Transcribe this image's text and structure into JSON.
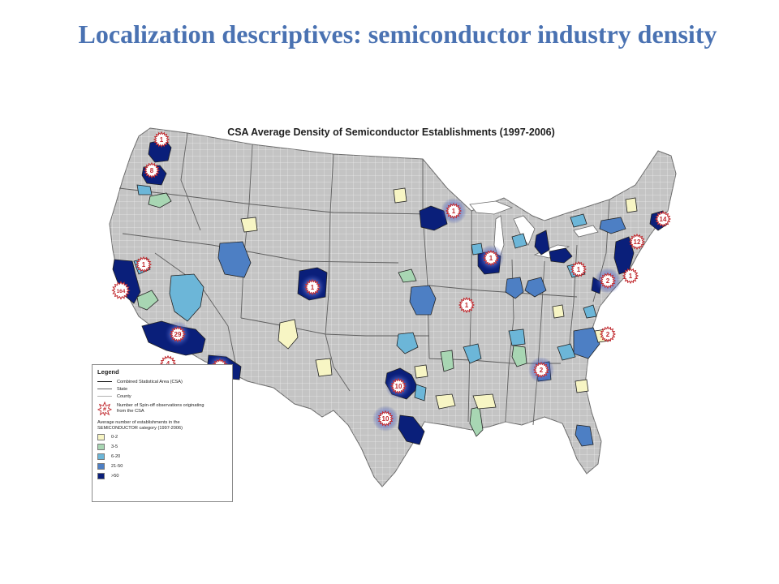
{
  "slide": {
    "title": "Localization descriptives:  semiconductor industry density"
  },
  "map": {
    "title": "CSA Average Density of Semiconductor Establishments (1997-2006)",
    "legend": {
      "title": "Legend",
      "lines": [
        {
          "label": "Combined Statistical Area (CSA)"
        },
        {
          "label": "State"
        },
        {
          "label": "County"
        }
      ],
      "spinoff_symbol": "#",
      "spinoff_label": "Number of Spin-off observations originating from the CSA",
      "category_heading": "Average number of establishments in the SEMICONDUCTOR category (1997-2006)",
      "categories": [
        {
          "label": "0-2",
          "color": "#f7f5c4"
        },
        {
          "label": "3-5",
          "color": "#a8d6b3"
        },
        {
          "label": "6-20",
          "color": "#6cb6d8"
        },
        {
          "label": "21-50",
          "color": "#4d7fc4"
        },
        {
          "label": ">50",
          "color": "#0a1f7a"
        }
      ]
    },
    "spinoff_markers": [
      {
        "count": "1",
        "location": "Bellingham"
      },
      {
        "count": "8",
        "location": "Seattle"
      },
      {
        "count": "1",
        "location": "Sacramento"
      },
      {
        "count": "164",
        "location": "San Jose-San Francisco"
      },
      {
        "count": "29",
        "location": "Los Angeles"
      },
      {
        "count": "4",
        "location": "San Diego"
      },
      {
        "count": "1",
        "location": "Phoenix"
      },
      {
        "count": "1",
        "location": "Denver"
      },
      {
        "count": "10",
        "location": "Dallas"
      },
      {
        "count": "10",
        "location": "Austin"
      },
      {
        "count": "1",
        "location": "Minneapolis"
      },
      {
        "count": "1",
        "location": "Chicago"
      },
      {
        "count": "1",
        "location": "St. Louis"
      },
      {
        "count": "1",
        "location": "Pittsburgh"
      },
      {
        "count": "2",
        "location": "Washington-Baltimore"
      },
      {
        "count": "1",
        "location": "Philadelphia"
      },
      {
        "count": "12",
        "location": "New York"
      },
      {
        "count": "14",
        "location": "Boston"
      },
      {
        "count": "2",
        "location": "Raleigh"
      },
      {
        "count": "2",
        "location": "Atlanta"
      }
    ]
  }
}
